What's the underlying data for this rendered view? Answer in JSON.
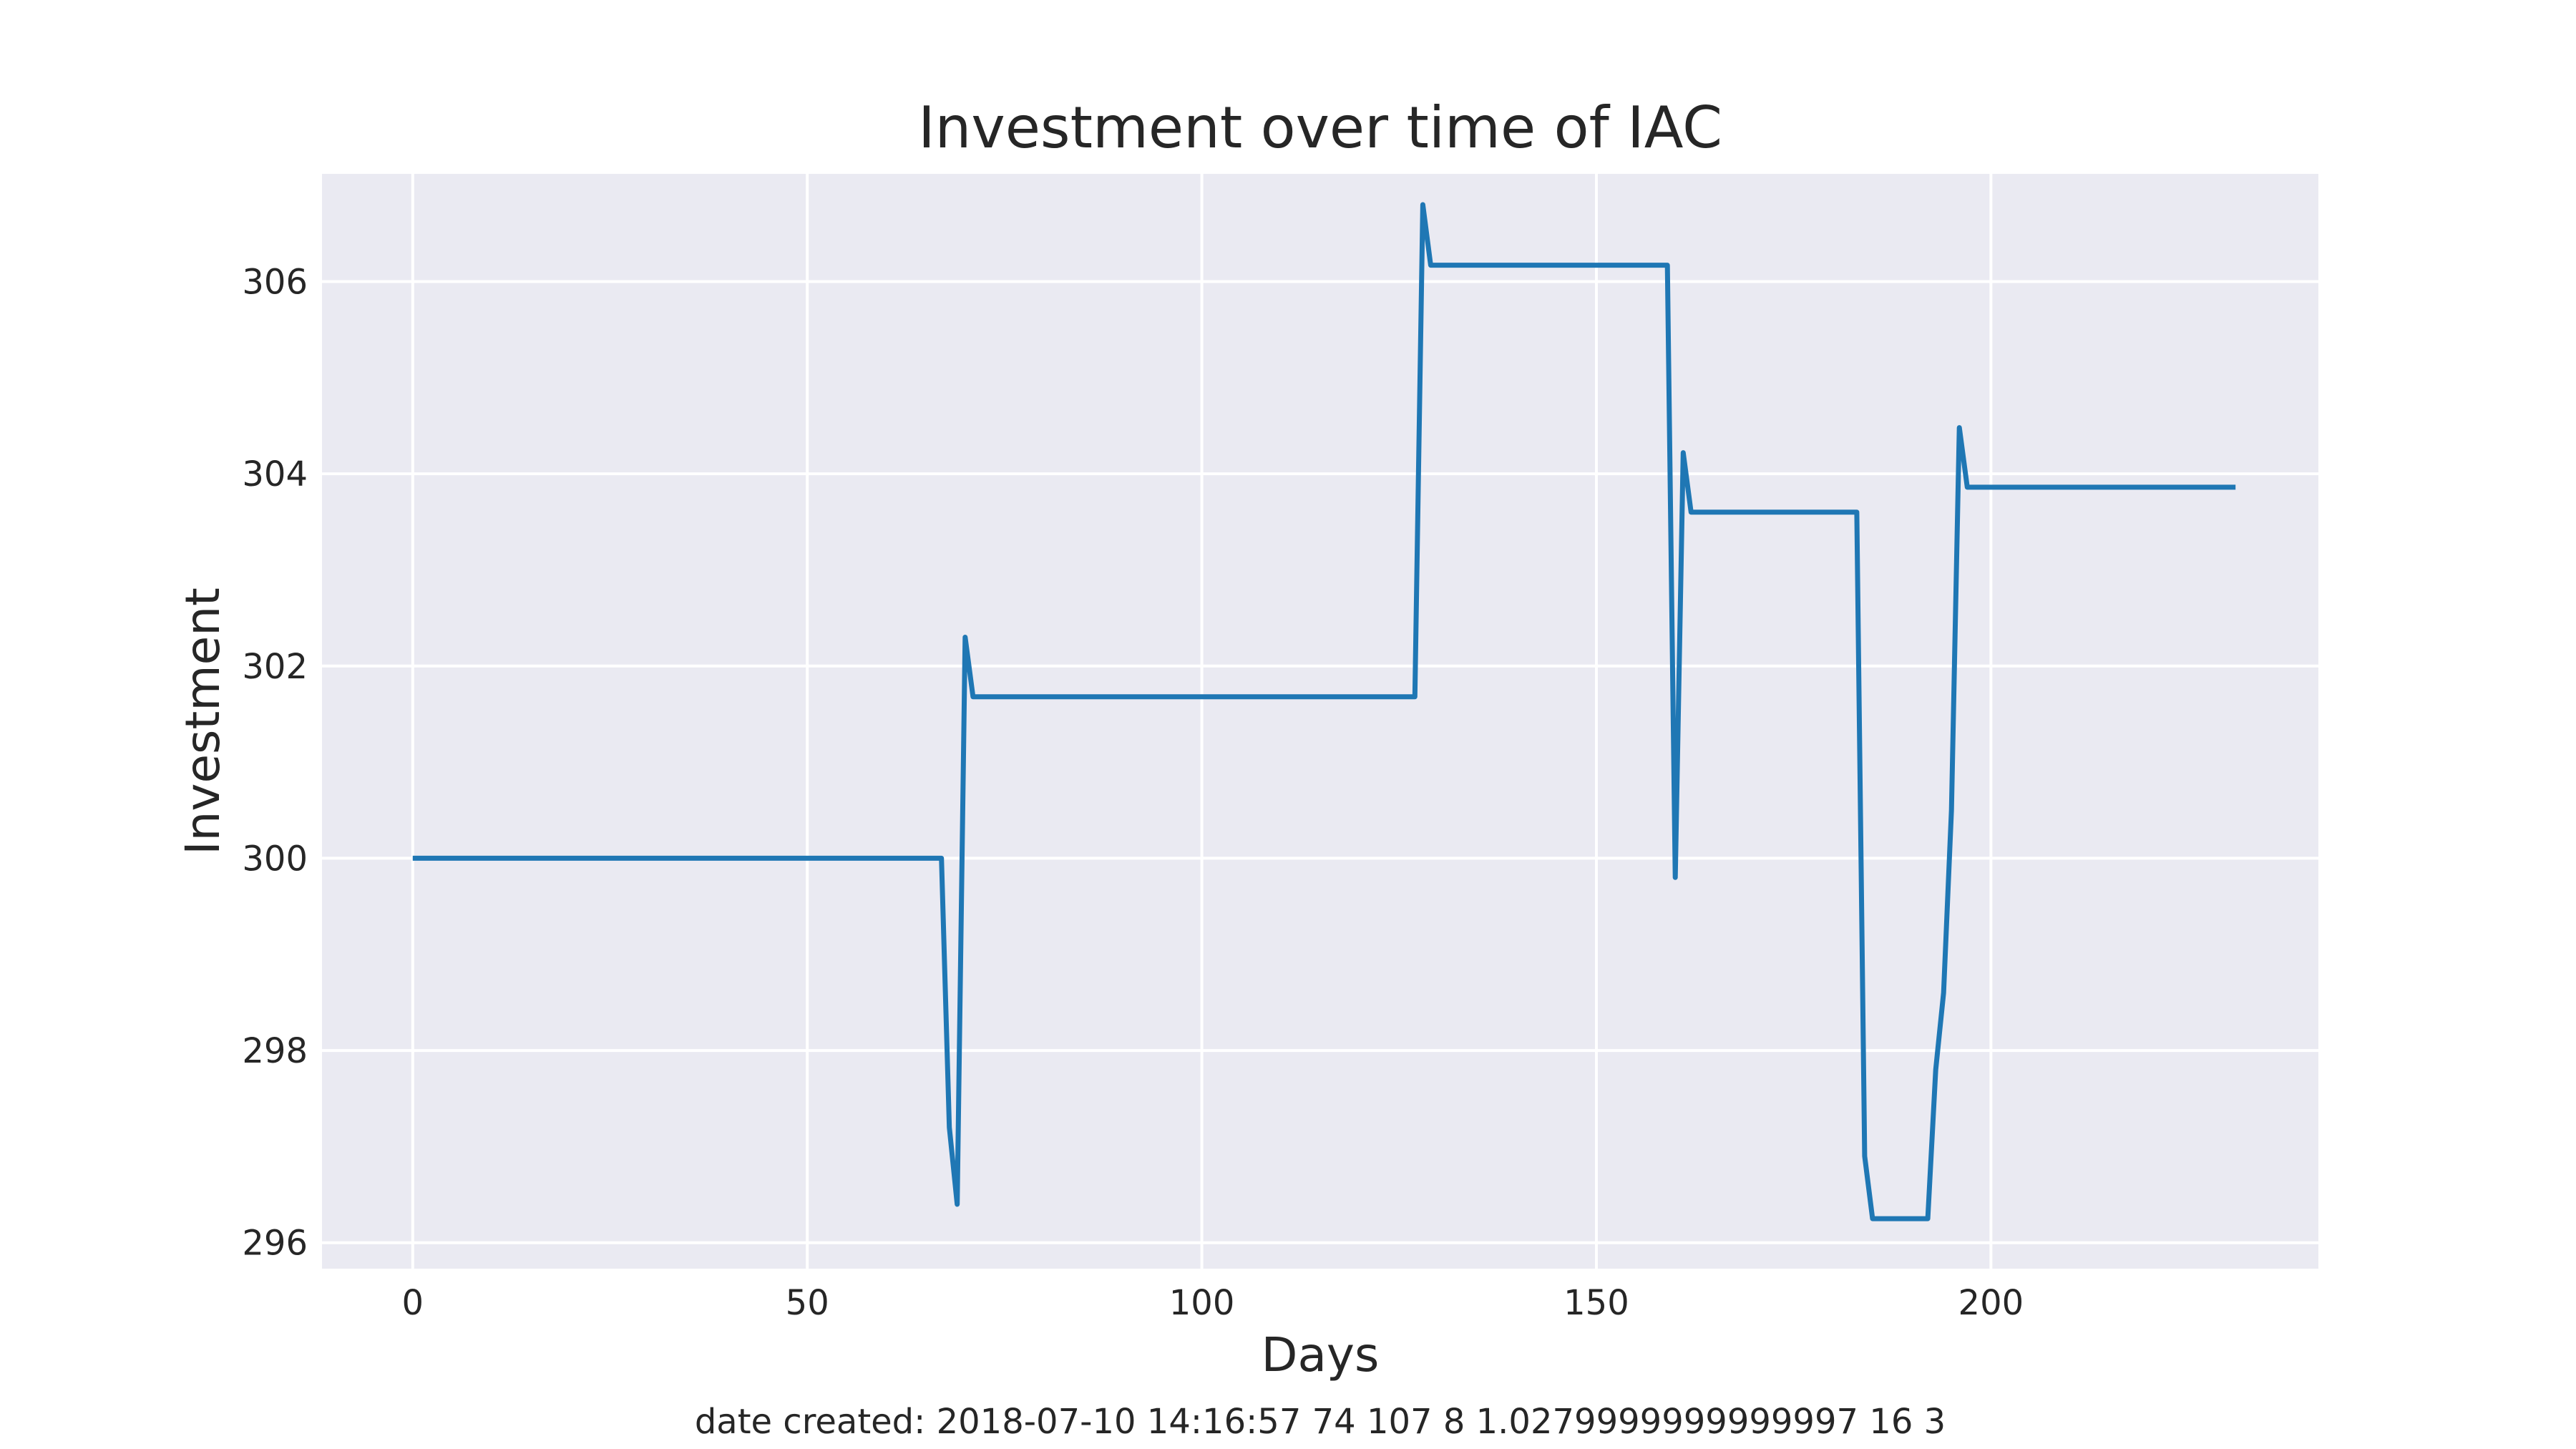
{
  "chart_data": {
    "type": "line",
    "title": "Investment over time of IAC",
    "xlabel": "Days",
    "ylabel": "Investment",
    "xlim": [
      -11.5,
      241.5
    ],
    "ylim": [
      295.73,
      307.12
    ],
    "xticks": [
      0,
      50,
      100,
      150,
      200
    ],
    "yticks": [
      296,
      298,
      300,
      302,
      304,
      306
    ],
    "grid": true,
    "legend": "none",
    "background_color": "#eaeaf2",
    "grid_color": "#ffffff",
    "series": [
      {
        "color": "#1f77b4",
        "x": [
          0,
          67,
          68,
          69,
          70,
          71,
          127,
          128,
          129,
          159,
          160,
          161,
          162,
          183,
          184,
          185,
          192,
          193,
          194,
          195,
          196,
          197,
          231
        ],
        "y": [
          300.0,
          300.0,
          297.2,
          296.4,
          302.3,
          301.68,
          301.68,
          306.8,
          306.17,
          306.17,
          299.8,
          304.22,
          303.6,
          303.6,
          296.9,
          296.25,
          296.25,
          297.8,
          298.6,
          300.5,
          304.48,
          303.86,
          303.86
        ]
      }
    ]
  },
  "footer": {
    "text": "date created: 2018-07-10 14:16:57 74 107 8 1.0279999999999997 16 3"
  }
}
